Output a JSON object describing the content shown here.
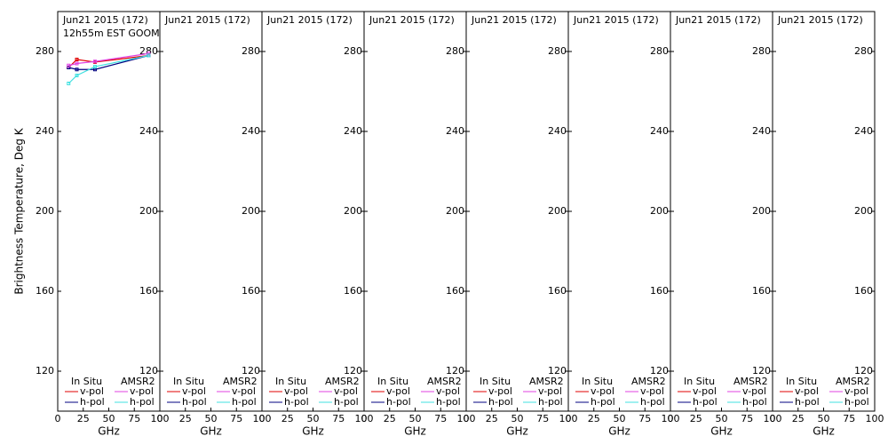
{
  "chart_data": [
    {
      "type": "line",
      "title": "Jun21 2015 (172)",
      "subtitle": "12h55m EST GOOM",
      "ylabel": "Brightness Temperature, Deg K",
      "xlabel": "GHz",
      "xlim": [
        0,
        100
      ],
      "xticks": [
        0,
        25,
        50,
        75,
        100
      ],
      "ylim": [
        100,
        300
      ],
      "yticks": [
        120,
        160,
        200,
        240,
        280
      ],
      "legend_groups": [
        "In Situ",
        "AMSR2"
      ],
      "x": [
        10.65,
        18.7,
        36.5,
        89
      ],
      "series": [
        {
          "name": "v-pol",
          "color": "#e00000",
          "values": [
            272,
            276,
            274.7,
            278
          ]
        },
        {
          "name": "h-pol",
          "color": "#000080",
          "values": [
            272,
            271,
            271,
            278
          ]
        },
        {
          "name": "v-pol",
          "color": "#e040e0",
          "values": [
            273,
            274,
            275,
            279
          ]
        },
        {
          "name": "h-pol",
          "color": "#40e0e0",
          "values": [
            264,
            268,
            272.4,
            278
          ]
        }
      ]
    },
    {
      "type": "line",
      "title": "Jun21 2015 (172)",
      "xlabel": "GHz",
      "xlim": [
        0,
        100
      ],
      "xticks": [
        0,
        25,
        50,
        75,
        100
      ],
      "ylim": [
        100,
        300
      ],
      "yticks": [
        120,
        160,
        200,
        240,
        280
      ],
      "legend_groups": [
        "In Situ",
        "AMSR2"
      ],
      "x": [],
      "series": [
        {
          "name": "v-pol",
          "color": "#e00000",
          "values": []
        },
        {
          "name": "h-pol",
          "color": "#000080",
          "values": []
        },
        {
          "name": "v-pol",
          "color": "#e040e0",
          "values": []
        },
        {
          "name": "h-pol",
          "color": "#40e0e0",
          "values": []
        }
      ]
    },
    {
      "type": "line",
      "title": "Jun21 2015 (172)",
      "xlabel": "GHz",
      "xlim": [
        0,
        100
      ],
      "xticks": [
        0,
        25,
        50,
        75,
        100
      ],
      "ylim": [
        100,
        300
      ],
      "yticks": [
        120,
        160,
        200,
        240,
        280
      ],
      "legend_groups": [
        "In Situ",
        "AMSR2"
      ],
      "x": [],
      "series": [
        {
          "name": "v-pol",
          "color": "#e00000",
          "values": []
        },
        {
          "name": "h-pol",
          "color": "#000080",
          "values": []
        },
        {
          "name": "v-pol",
          "color": "#e040e0",
          "values": []
        },
        {
          "name": "h-pol",
          "color": "#40e0e0",
          "values": []
        }
      ]
    },
    {
      "type": "line",
      "title": "Jun21 2015 (172)",
      "xlabel": "GHz",
      "xlim": [
        0,
        100
      ],
      "xticks": [
        0,
        25,
        50,
        75,
        100
      ],
      "ylim": [
        100,
        300
      ],
      "yticks": [
        120,
        160,
        200,
        240,
        280
      ],
      "legend_groups": [
        "In Situ",
        "AMSR2"
      ],
      "x": [],
      "series": [
        {
          "name": "v-pol",
          "color": "#e00000",
          "values": []
        },
        {
          "name": "h-pol",
          "color": "#000080",
          "values": []
        },
        {
          "name": "v-pol",
          "color": "#e040e0",
          "values": []
        },
        {
          "name": "h-pol",
          "color": "#40e0e0",
          "values": []
        }
      ]
    },
    {
      "type": "line",
      "title": "Jun21 2015 (172)",
      "xlabel": "GHz",
      "xlim": [
        0,
        100
      ],
      "xticks": [
        0,
        25,
        50,
        75,
        100
      ],
      "ylim": [
        100,
        300
      ],
      "yticks": [
        120,
        160,
        200,
        240,
        280
      ],
      "legend_groups": [
        "In Situ",
        "AMSR2"
      ],
      "x": [],
      "series": [
        {
          "name": "v-pol",
          "color": "#e00000",
          "values": []
        },
        {
          "name": "h-pol",
          "color": "#000080",
          "values": []
        },
        {
          "name": "v-pol",
          "color": "#e040e0",
          "values": []
        },
        {
          "name": "h-pol",
          "color": "#40e0e0",
          "values": []
        }
      ]
    },
    {
      "type": "line",
      "title": "Jun21 2015 (172)",
      "xlabel": "GHz",
      "xlim": [
        0,
        100
      ],
      "xticks": [
        0,
        25,
        50,
        75,
        100
      ],
      "ylim": [
        100,
        300
      ],
      "yticks": [
        120,
        160,
        200,
        240,
        280
      ],
      "legend_groups": [
        "In Situ",
        "AMSR2"
      ],
      "x": [],
      "series": [
        {
          "name": "v-pol",
          "color": "#e00000",
          "values": []
        },
        {
          "name": "h-pol",
          "color": "#000080",
          "values": []
        },
        {
          "name": "v-pol",
          "color": "#e040e0",
          "values": []
        },
        {
          "name": "h-pol",
          "color": "#40e0e0",
          "values": []
        }
      ]
    },
    {
      "type": "line",
      "title": "Jun21 2015 (172)",
      "xlabel": "GHz",
      "xlim": [
        0,
        100
      ],
      "xticks": [
        0,
        25,
        50,
        75,
        100
      ],
      "ylim": [
        100,
        300
      ],
      "yticks": [
        120,
        160,
        200,
        240,
        280
      ],
      "legend_groups": [
        "In Situ",
        "AMSR2"
      ],
      "x": [],
      "series": [
        {
          "name": "v-pol",
          "color": "#e00000",
          "values": []
        },
        {
          "name": "h-pol",
          "color": "#000080",
          "values": []
        },
        {
          "name": "v-pol",
          "color": "#e040e0",
          "values": []
        },
        {
          "name": "h-pol",
          "color": "#40e0e0",
          "values": []
        }
      ]
    },
    {
      "type": "line",
      "title": "Jun21 2015 (172)",
      "xlabel": "GHz",
      "xlim": [
        0,
        100
      ],
      "xticks": [
        0,
        25,
        50,
        75,
        100
      ],
      "ylim": [
        100,
        300
      ],
      "yticks": [
        120,
        160,
        200,
        240,
        280
      ],
      "legend_groups": [
        "In Situ",
        "AMSR2"
      ],
      "x": [],
      "series": [
        {
          "name": "v-pol",
          "color": "#e00000",
          "values": []
        },
        {
          "name": "h-pol",
          "color": "#000080",
          "values": []
        },
        {
          "name": "v-pol",
          "color": "#e040e0",
          "values": []
        },
        {
          "name": "h-pol",
          "color": "#40e0e0",
          "values": []
        }
      ]
    }
  ]
}
